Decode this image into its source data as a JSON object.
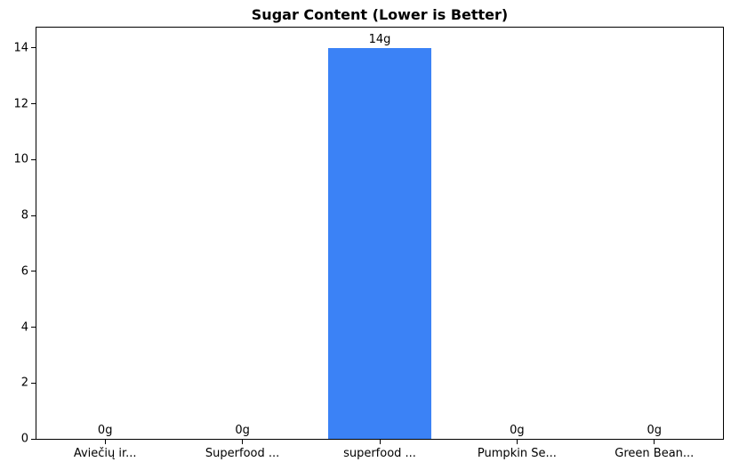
{
  "chart_data": {
    "type": "bar",
    "title": "Sugar Content (Lower is Better)",
    "categories": [
      "Aviečių ir...",
      "Superfood ...",
      "superfood ...",
      "Pumpkin Se...",
      "Green Bean..."
    ],
    "values": [
      0,
      0,
      14,
      0,
      0
    ],
    "value_labels": [
      "0g",
      "0g",
      "14g",
      "0g",
      "0g"
    ],
    "series_unit": "g",
    "xlabel": "",
    "ylabel": "",
    "y_ticks": [
      0,
      2,
      4,
      6,
      8,
      10,
      12,
      14
    ],
    "ylim": [
      0,
      14.73
    ],
    "grid": false,
    "legend_position": "none",
    "bar_width_fraction": 0.75,
    "bar_color": "#3b82f6",
    "axis_color": "#000000",
    "text_color": "#000000",
    "background_color": "#ffffff"
  }
}
